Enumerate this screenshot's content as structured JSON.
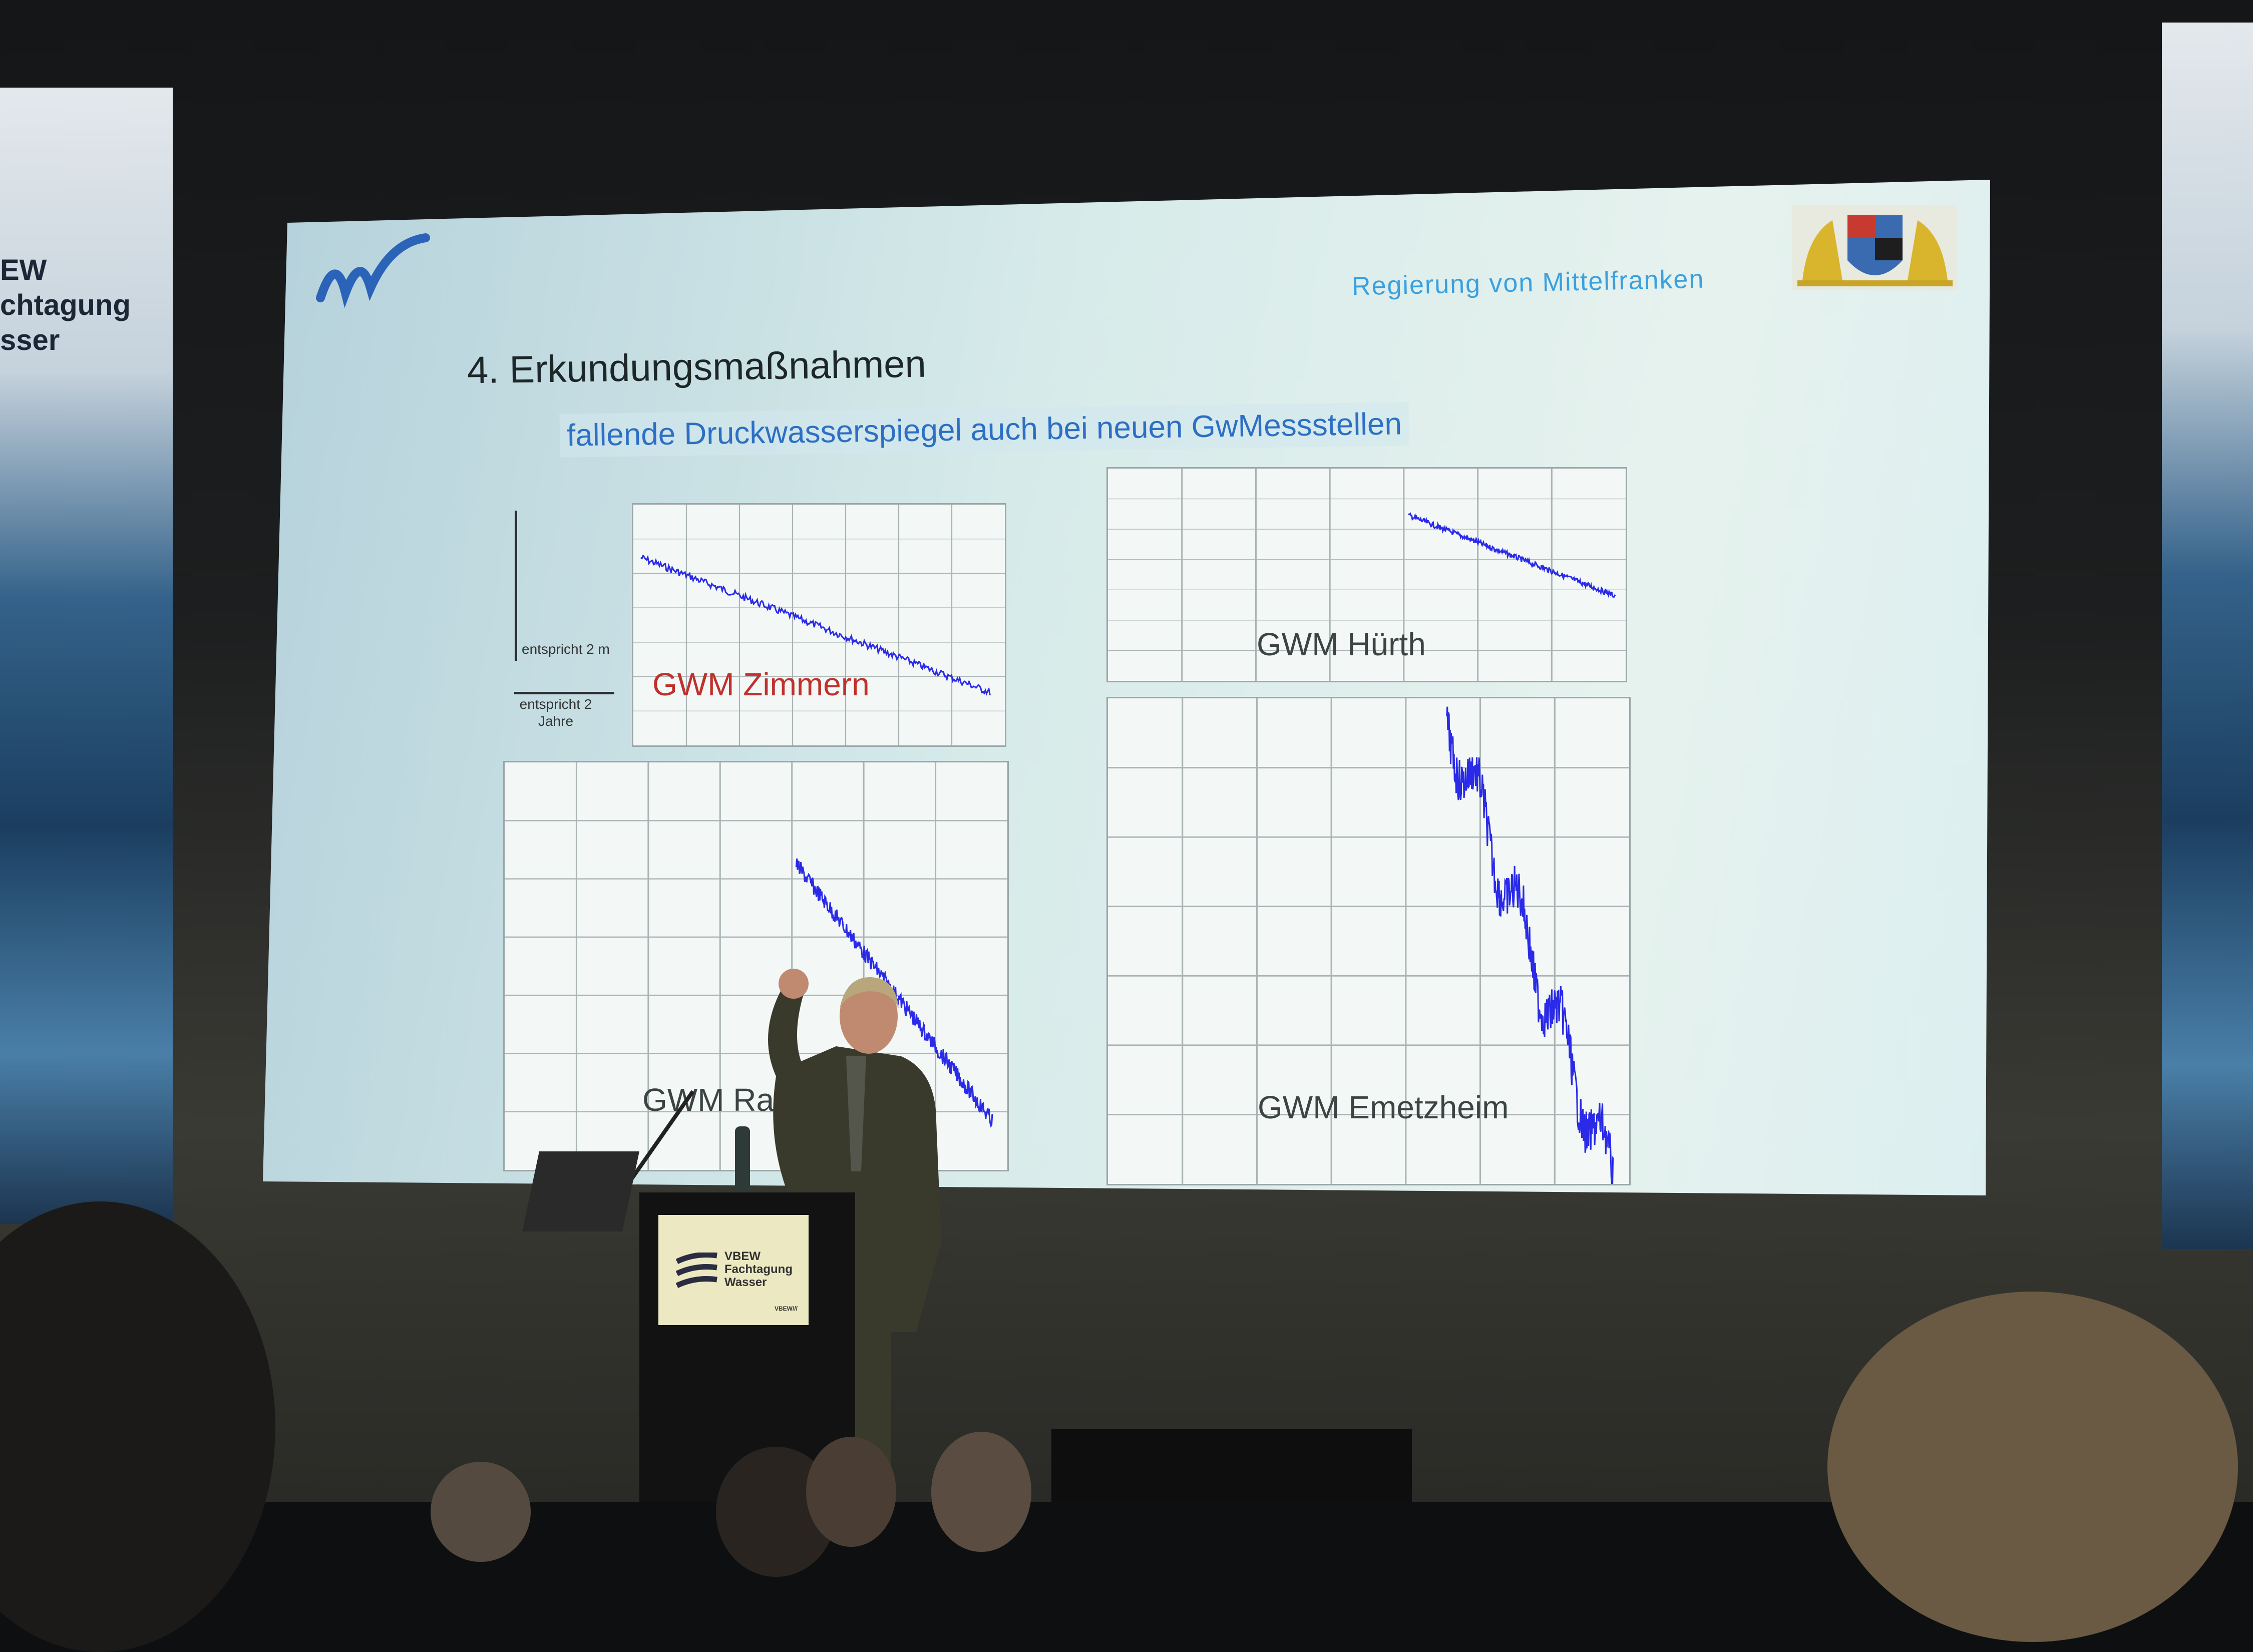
{
  "slide": {
    "title": "4. Erkundungsmaßnahmen",
    "subtitle": "fallende Druckwasserspiegel auch bei neuen GwMessstellen",
    "organization": "Regierung von Mittelfranken",
    "scale_vertical": "entspricht 2 m",
    "scale_horizontal_1": "entspricht 2",
    "scale_horizontal_2": "Jahre",
    "charts": [
      {
        "label": "GWM Zimmern",
        "color": "#c0302c"
      },
      {
        "label": "GWM Hürth",
        "color": "#3b4443"
      },
      {
        "label": "GWM Rain",
        "color": "#3b4443"
      },
      {
        "label": "GWM Emetzheim",
        "color": "#3b4443"
      }
    ],
    "line_color": "#2a2ae8"
  },
  "banner_left": {
    "line1": "EW",
    "line2": "chtagung",
    "line3": "sser"
  },
  "podium_sign": {
    "line1": "VBEW",
    "line2": "Fachtagung",
    "line3": "Wasser",
    "logo": "VBEW///"
  }
}
